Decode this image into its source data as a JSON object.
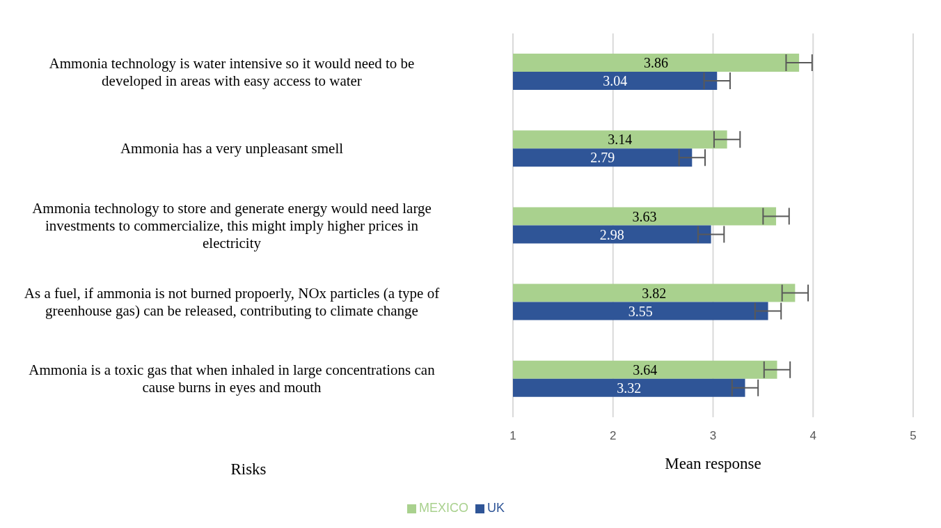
{
  "chart_data": {
    "type": "bar",
    "orientation": "horizontal",
    "ylabel": "Risks",
    "xlabel": "Mean response",
    "categories": [
      "Ammonia technology is water intensive so it would need to be developed in areas with easy access to water",
      "Ammonia has a very unpleasant smell",
      "Ammonia technology to store and generate energy would need large investments to commercialize, this might imply higher prices in electricity",
      "As a fuel, if ammonia is not burned propoerly, NOx particles (a type of greenhouse gas) can be released, contributing to climate change",
      "Ammonia is a toxic gas that when inhaled in large concentrations can cause burns in eyes and mouth"
    ],
    "series": [
      {
        "name": "MEXICO",
        "color": "#a9d18e",
        "values": [
          3.86,
          3.14,
          3.63,
          3.82,
          3.64
        ],
        "errors": [
          0.13,
          0.13,
          0.13,
          0.13,
          0.13
        ]
      },
      {
        "name": "UK",
        "color": "#2f5597",
        "values": [
          3.04,
          2.79,
          2.98,
          3.55,
          3.32
        ],
        "errors": [
          0.13,
          0.13,
          0.13,
          0.13,
          0.13
        ]
      }
    ],
    "xlim": [
      1,
      5
    ],
    "xticks": [
      1,
      2,
      3,
      4,
      5
    ],
    "grid": "x",
    "legend": "bottom",
    "data_labels": true
  }
}
